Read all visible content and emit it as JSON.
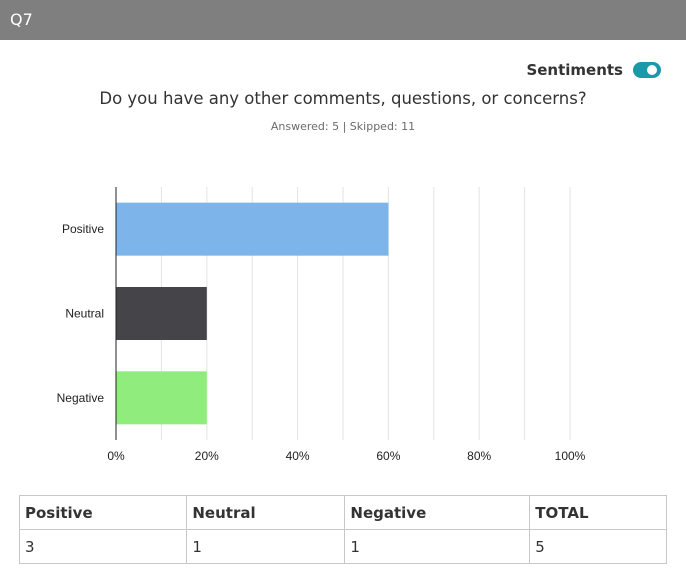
{
  "header": {
    "question_id": "Q7"
  },
  "sentiment_toggle": {
    "label": "Sentiments",
    "on": true,
    "color": "#1a9aa8"
  },
  "question": {
    "text": "Do you have any other comments, questions, or concerns?",
    "stats": "Answered: 5 | Skipped: 11"
  },
  "chart_data": {
    "type": "bar",
    "orientation": "horizontal",
    "categories": [
      "Positive",
      "Neutral",
      "Negative"
    ],
    "values": [
      60,
      20,
      20
    ],
    "colors": [
      "#7db4ea",
      "#444449",
      "#90ec7c"
    ],
    "xlim": [
      0,
      100
    ],
    "x_ticks": [
      "0%",
      "20%",
      "40%",
      "60%",
      "80%",
      "100%"
    ],
    "grid": true,
    "title": "",
    "xlabel": "",
    "ylabel": ""
  },
  "summary_table": {
    "headers": [
      "Positive",
      "Neutral",
      "Negative",
      "TOTAL"
    ],
    "values": [
      "3",
      "1",
      "1",
      "5"
    ]
  }
}
